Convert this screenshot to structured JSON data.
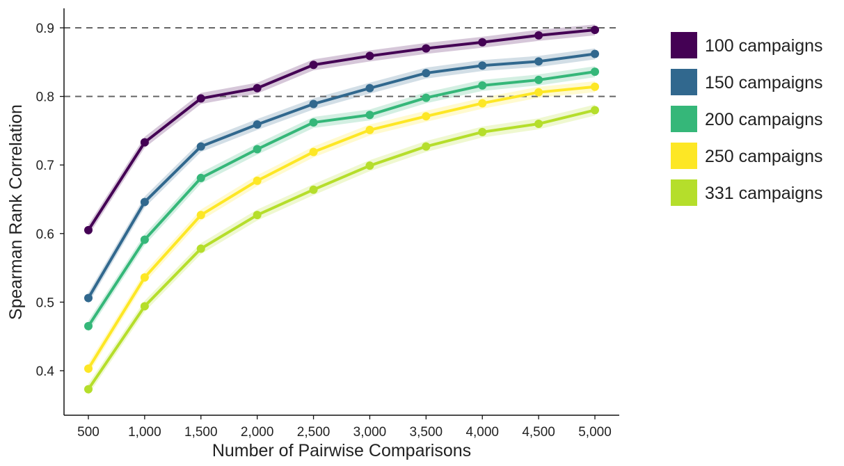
{
  "chart_data": {
    "type": "line",
    "xlabel": "Number of Pairwise Comparisons",
    "ylabel": "Spearman Rank Correlation",
    "x": [
      500,
      1000,
      1500,
      2000,
      2500,
      3000,
      3500,
      4000,
      4500,
      5000
    ],
    "x_tick_labels": [
      "500",
      "1,000",
      "1,500",
      "2,000",
      "2,500",
      "3,000",
      "3,500",
      "4,000",
      "4,500",
      "5,000"
    ],
    "y_ticks": [
      0.4,
      0.5,
      0.6,
      0.7,
      0.8,
      0.9
    ],
    "y_tick_labels": [
      "0.4",
      "0.5",
      "0.6",
      "0.7",
      "0.8",
      "0.9"
    ],
    "ylim": [
      0.35,
      0.93
    ],
    "reference_lines": [
      0.8,
      0.9
    ],
    "grid": false,
    "legend_position": "right",
    "band_halfwidth": 0.008,
    "series": [
      {
        "name": "100 campaigns",
        "color": "#440154",
        "values": [
          0.605,
          0.733,
          0.797,
          0.812,
          0.846,
          0.859,
          0.87,
          0.879,
          0.889,
          0.897
        ]
      },
      {
        "name": "150 campaigns",
        "color": "#31688E",
        "values": [
          0.506,
          0.646,
          0.727,
          0.759,
          0.789,
          0.812,
          0.834,
          0.845,
          0.851,
          0.862
        ]
      },
      {
        "name": "200 campaigns",
        "color": "#35B779",
        "values": [
          0.465,
          0.591,
          0.681,
          0.723,
          0.762,
          0.773,
          0.798,
          0.816,
          0.824,
          0.836
        ]
      },
      {
        "name": "250 campaigns",
        "color": "#FDE725",
        "values": [
          0.403,
          0.536,
          0.627,
          0.677,
          0.719,
          0.751,
          0.771,
          0.79,
          0.806,
          0.814
        ]
      },
      {
        "name": "331 campaigns",
        "color": "#B5DE2B",
        "values": [
          0.373,
          0.494,
          0.578,
          0.627,
          0.664,
          0.699,
          0.727,
          0.748,
          0.76,
          0.78
        ]
      }
    ]
  }
}
